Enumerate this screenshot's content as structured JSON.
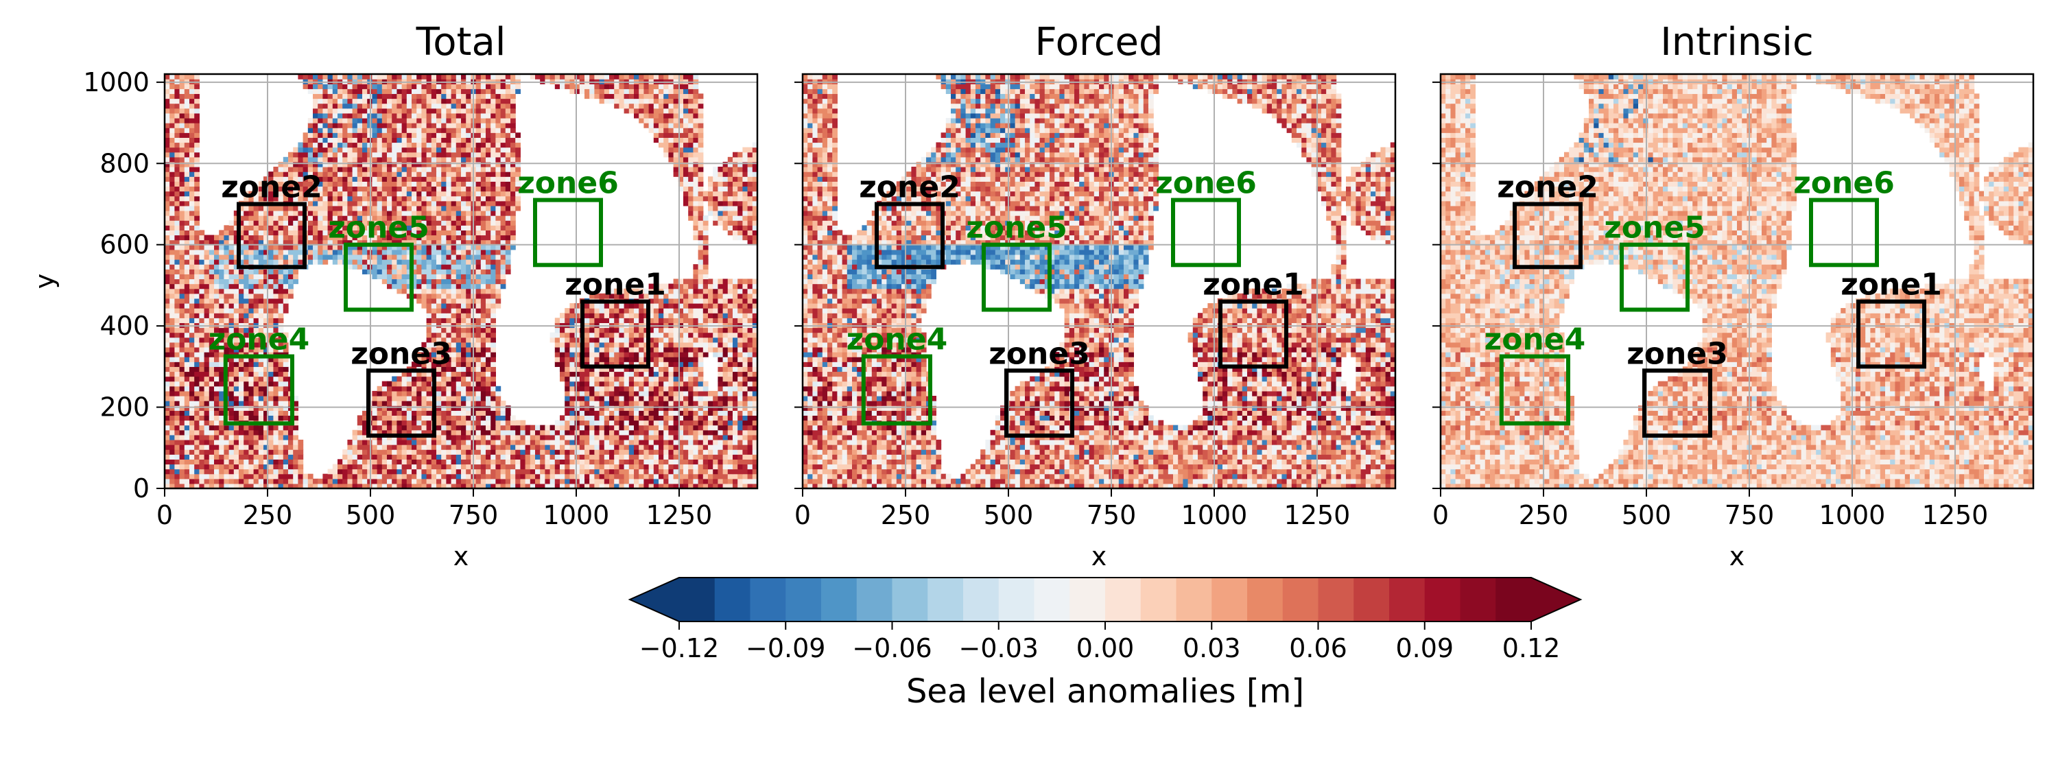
{
  "chart_data": {
    "type": "heatmap",
    "panels": [
      {
        "title": "Total",
        "xlabel": "x",
        "ylabel": "y",
        "intensity": 1.0,
        "blue_band": 0.55,
        "zones": [
          {
            "label": "zone1",
            "color": "#000000",
            "x": [
              1015,
              1175
            ],
            "y": [
              300,
              460
            ]
          },
          {
            "label": "zone2",
            "color": "#000000",
            "x": [
              180,
              340
            ],
            "y": [
              545,
              700
            ]
          },
          {
            "label": "zone3",
            "color": "#000000",
            "x": [
              495,
              655
            ],
            "y": [
              130,
              290
            ]
          },
          {
            "label": "zone4",
            "color": "#008000",
            "x": [
              148,
              310
            ],
            "y": [
              160,
              325
            ]
          },
          {
            "label": "zone5",
            "color": "#008000",
            "x": [
              440,
              600
            ],
            "y": [
              440,
              600
            ]
          },
          {
            "label": "zone6",
            "color": "#008000",
            "x": [
              900,
              1060
            ],
            "y": [
              550,
              710
            ]
          }
        ]
      },
      {
        "title": "Forced",
        "xlabel": "x",
        "ylabel": "",
        "intensity": 0.85,
        "blue_band": 0.9,
        "zones": [
          {
            "label": "zone1",
            "color": "#000000",
            "x": [
              1015,
              1175
            ],
            "y": [
              300,
              460
            ]
          },
          {
            "label": "zone2",
            "color": "#000000",
            "x": [
              180,
              340
            ],
            "y": [
              545,
              700
            ]
          },
          {
            "label": "zone3",
            "color": "#000000",
            "x": [
              495,
              655
            ],
            "y": [
              130,
              290
            ]
          },
          {
            "label": "zone4",
            "color": "#008000",
            "x": [
              148,
              310
            ],
            "y": [
              160,
              325
            ]
          },
          {
            "label": "zone5",
            "color": "#008000",
            "x": [
              440,
              600
            ],
            "y": [
              440,
              600
            ]
          },
          {
            "label": "zone6",
            "color": "#008000",
            "x": [
              900,
              1060
            ],
            "y": [
              550,
              710
            ]
          }
        ]
      },
      {
        "title": "Intrinsic",
        "xlabel": "x",
        "ylabel": "",
        "intensity": 0.45,
        "blue_band": 0.15,
        "zones": [
          {
            "label": "zone1",
            "color": "#000000",
            "x": [
              1015,
              1175
            ],
            "y": [
              300,
              460
            ]
          },
          {
            "label": "zone2",
            "color": "#000000",
            "x": [
              180,
              340
            ],
            "y": [
              545,
              700
            ]
          },
          {
            "label": "zone3",
            "color": "#000000",
            "x": [
              495,
              655
            ],
            "y": [
              130,
              290
            ]
          },
          {
            "label": "zone4",
            "color": "#008000",
            "x": [
              148,
              310
            ],
            "y": [
              160,
              325
            ]
          },
          {
            "label": "zone5",
            "color": "#008000",
            "x": [
              440,
              600
            ],
            "y": [
              440,
              600
            ]
          },
          {
            "label": "zone6",
            "color": "#008000",
            "x": [
              900,
              1060
            ],
            "y": [
              550,
              710
            ]
          }
        ]
      }
    ],
    "xlim": [
      0,
      1440
    ],
    "ylim": [
      0,
      1020
    ],
    "xticks": [
      0,
      250,
      500,
      750,
      1000,
      1250
    ],
    "yticks": [
      0,
      200,
      400,
      600,
      800,
      1000
    ],
    "grid": true,
    "colorbar": {
      "label": "Sea level anomalies [m]",
      "range": [
        -0.12,
        0.12
      ],
      "levels": 24,
      "extend": "both",
      "ticks": [
        "−0.12",
        "−0.09",
        "−0.06",
        "−0.03",
        "0.00",
        "0.03",
        "0.06",
        "0.09",
        "0.12"
      ],
      "colors": [
        "#0f3c76",
        "#1c5a9f",
        "#2f71b4",
        "#3c81bd",
        "#4f95c7",
        "#70abd2",
        "#93c3de",
        "#b3d5e8",
        "#cde2ef",
        "#e0ecf3",
        "#eef2f5",
        "#f6f0ec",
        "#fbe3d6",
        "#fbd0b8",
        "#f7bb9c",
        "#f2a381",
        "#e88967",
        "#de7259",
        "#d15a4d",
        "#c2403f",
        "#b32634",
        "#a11029",
        "#8d0a23",
        "#7a051e"
      ]
    }
  }
}
